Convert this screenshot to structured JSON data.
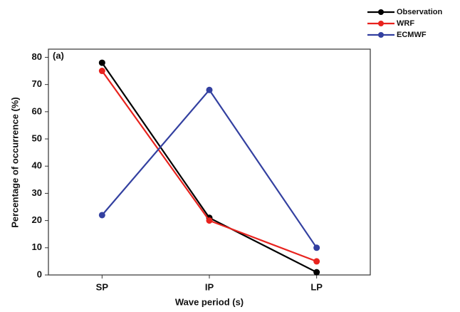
{
  "chart_data": {
    "type": "line",
    "annotation": "(a)",
    "xlabel": "Wave period (s)",
    "ylabel": "Percentage of occurrence (%)",
    "categories": [
      "SP",
      "IP",
      "LP"
    ],
    "series": [
      {
        "name": "Observation",
        "color": "#000000",
        "values": [
          78,
          21,
          1
        ]
      },
      {
        "name": "WRF",
        "color": "#e8231e",
        "values": [
          75,
          20,
          5
        ]
      },
      {
        "name": "ECMWF",
        "color": "#3340a0",
        "values": [
          22,
          68,
          10
        ]
      }
    ],
    "ylim": [
      0,
      83
    ],
    "yticks": [
      0,
      10,
      20,
      30,
      40,
      50,
      60,
      70,
      80
    ],
    "legend": "top-right"
  }
}
